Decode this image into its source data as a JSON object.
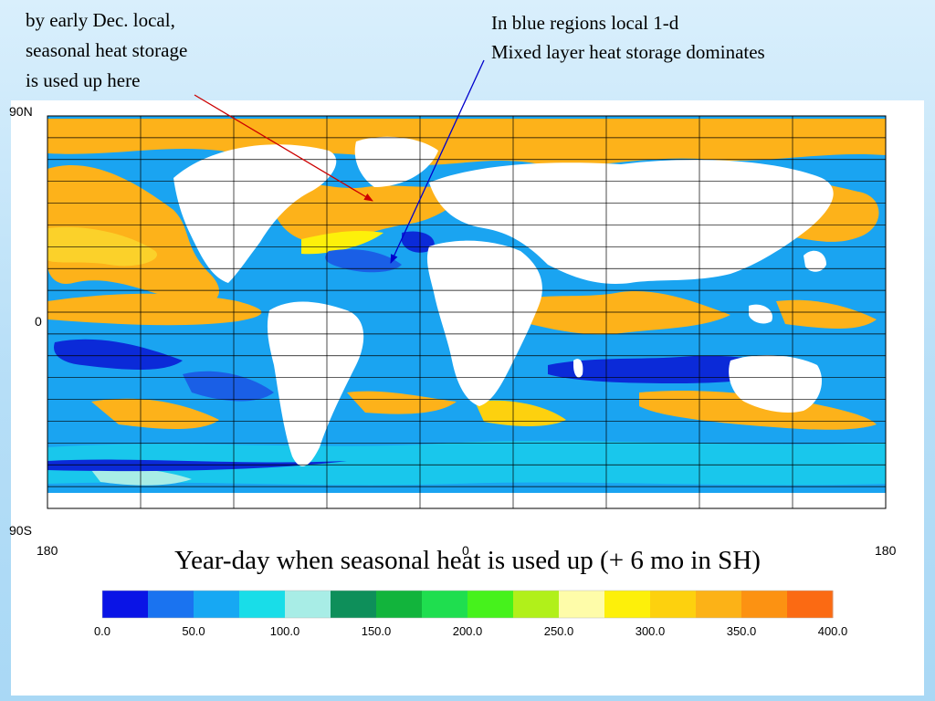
{
  "annotations": {
    "left": "by early Dec. local,\nseasonal heat storage\nis used up here",
    "right": "In blue regions local 1-d\nMixed layer heat storage dominates",
    "left_arrow_color": "#cc0000",
    "right_arrow_color": "#0000cc"
  },
  "map": {
    "lat_labels": [
      "90N",
      "0",
      "90S"
    ],
    "lon_labels": [
      "180",
      "0",
      "180"
    ]
  },
  "caption": "Year-day when seasonal heat is used up (+ 6 mo in SH)",
  "colorbar": {
    "colors": [
      "#0a14e6",
      "#1a73f0",
      "#17a8f3",
      "#19dde8",
      "#a8ede6",
      "#0e8f5a",
      "#12b43c",
      "#1fde4f",
      "#46f21c",
      "#b1f01a",
      "#fefca9",
      "#fdf00a",
      "#fdd10e",
      "#fcb217",
      "#fc9212",
      "#fb6a13"
    ],
    "tick_labels": [
      "0.0",
      "50.0",
      "100.0",
      "150.0",
      "200.0",
      "250.0",
      "300.0",
      "350.0",
      "400.0"
    ]
  }
}
